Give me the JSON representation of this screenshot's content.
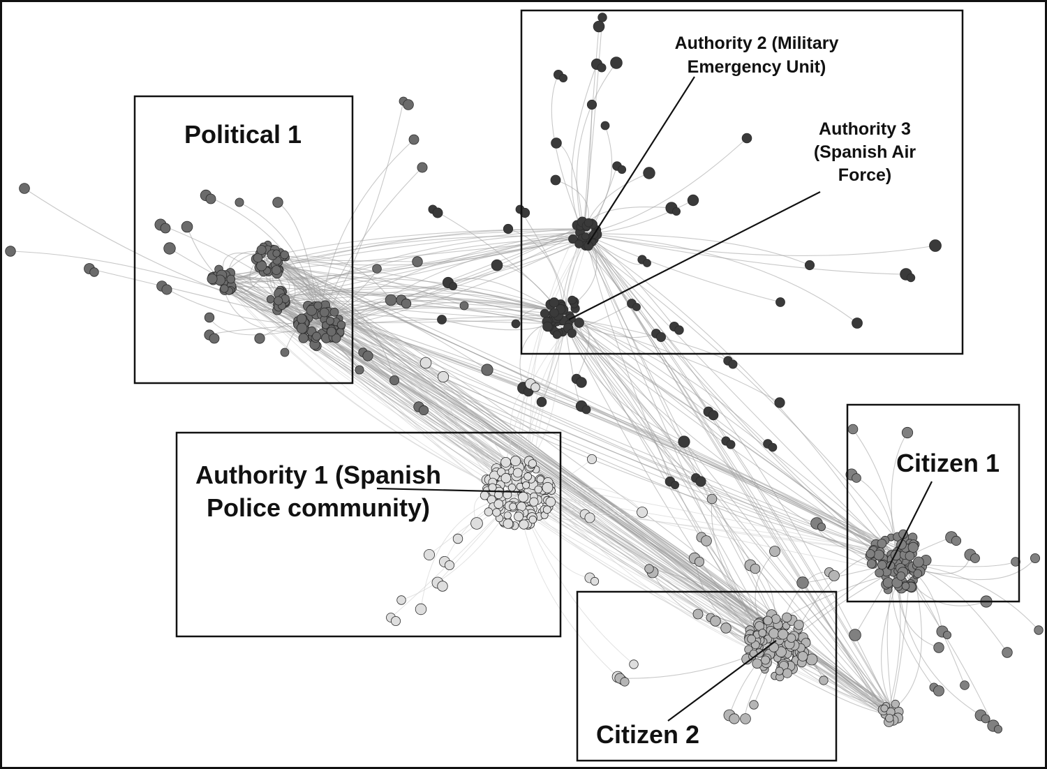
{
  "labels": {
    "political1": "Political 1",
    "authority1_line1": "Authority 1 (Spanish",
    "authority1_line2": "Police community)",
    "authority2_line1": "Authority 2 (Military",
    "authority2_line2": "Emergency Unit)",
    "authority3_line1": "Authority 3",
    "authority3_line2": "(Spanish Air",
    "authority3_line3": "Force)",
    "citizen1": "Citizen 1",
    "citizen2": "Citizen 2"
  },
  "colors": {
    "political": "#6b6b6b",
    "authority_dark": "#3a3a3a",
    "authority_police": "#dedede",
    "citizen1": "#808080",
    "citizen2": "#b5b5b5",
    "edge": "#9a9a9a"
  }
}
